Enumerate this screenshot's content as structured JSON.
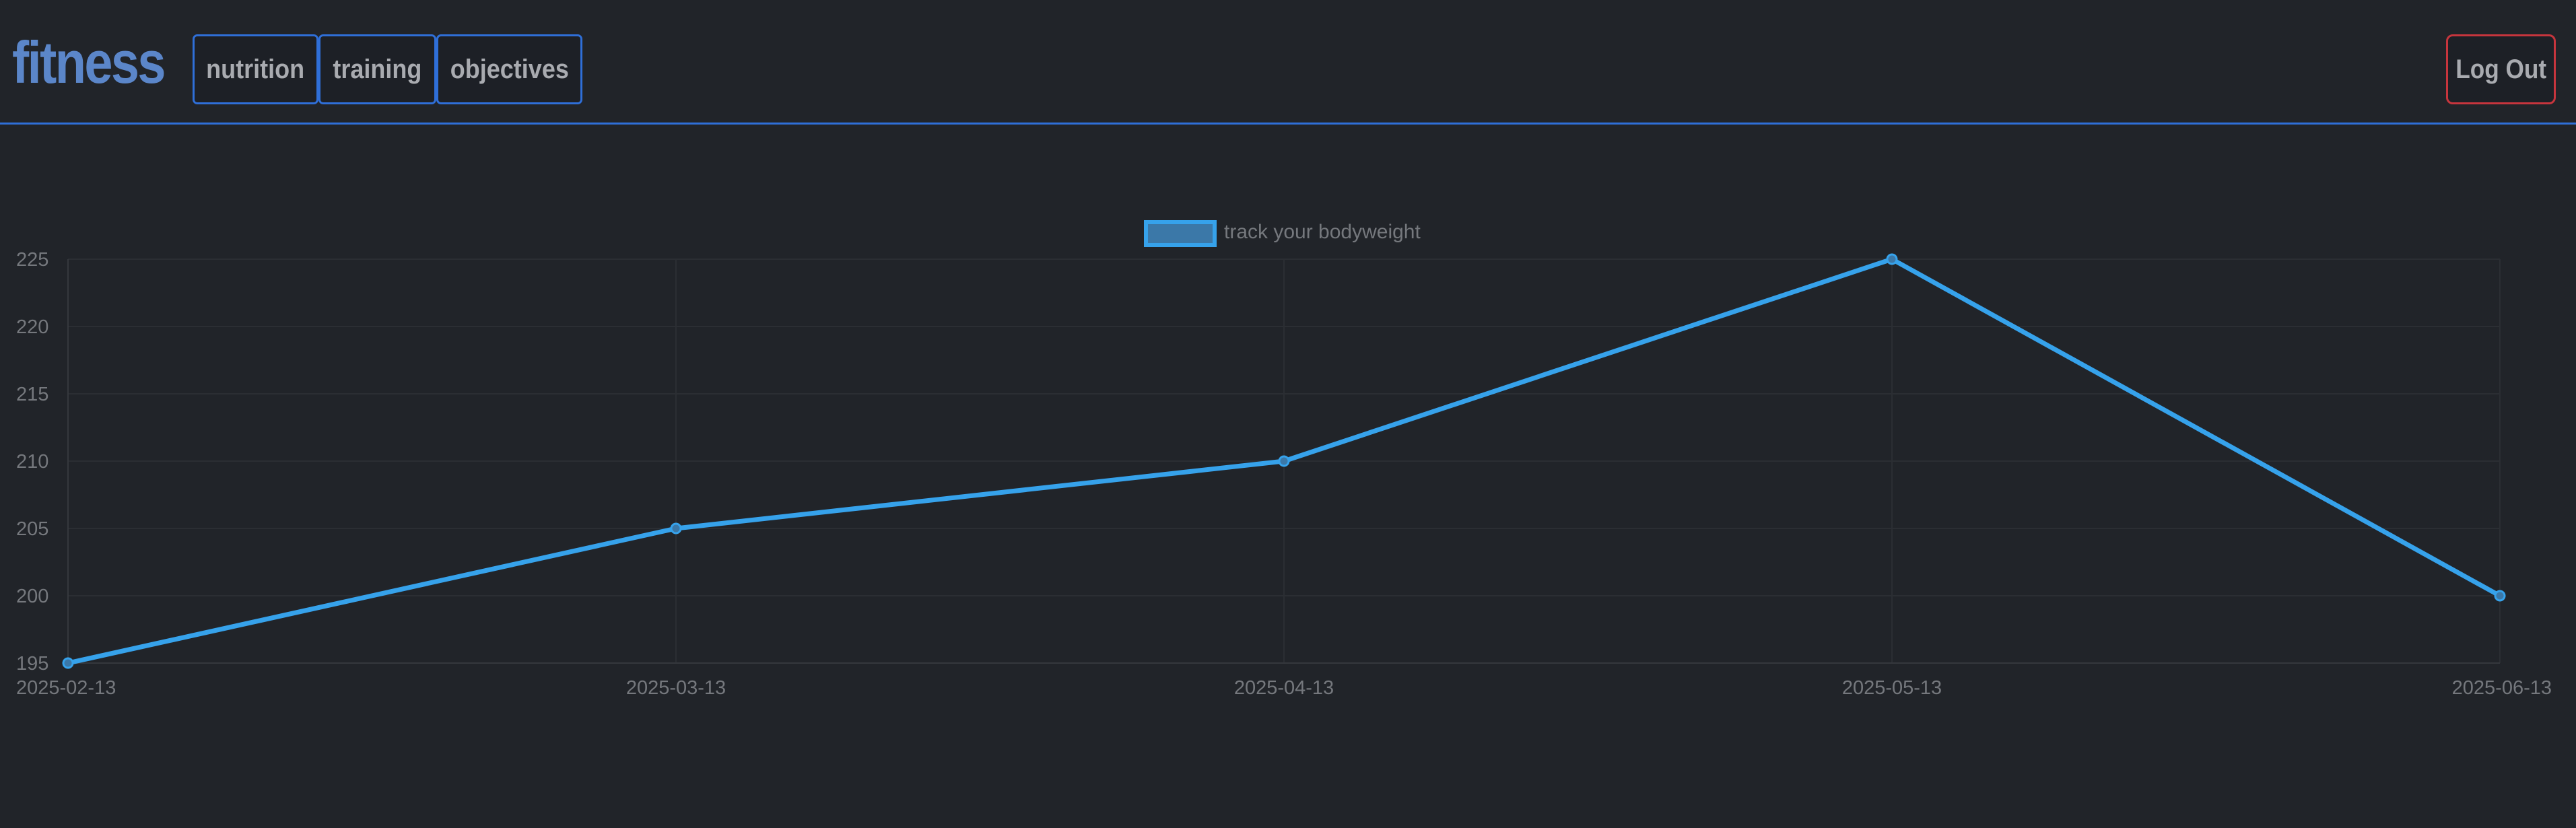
{
  "header": {
    "brand": "fitness",
    "nav": [
      {
        "label": "nutrition"
      },
      {
        "label": "training"
      },
      {
        "label": "objectives"
      }
    ],
    "logout_label": "Log Out"
  },
  "colors": {
    "background": "#212429",
    "accent": "#2f6fd8",
    "brand": "#5b86c9",
    "line": "#36a2eb",
    "logout_border": "#c7353d"
  },
  "chart_data": {
    "type": "line",
    "categories": [
      "2025-02-13",
      "2025-03-13",
      "2025-04-13",
      "2025-05-13",
      "2025-06-13"
    ],
    "series": [
      {
        "name": "track your bodyweight",
        "values": [
          195,
          205,
          210,
          225,
          200
        ]
      }
    ],
    "yticks": [
      195,
      200,
      205,
      210,
      215,
      220,
      225
    ],
    "ylim": [
      195,
      225
    ],
    "grid": true,
    "legend_position": "top-center"
  }
}
